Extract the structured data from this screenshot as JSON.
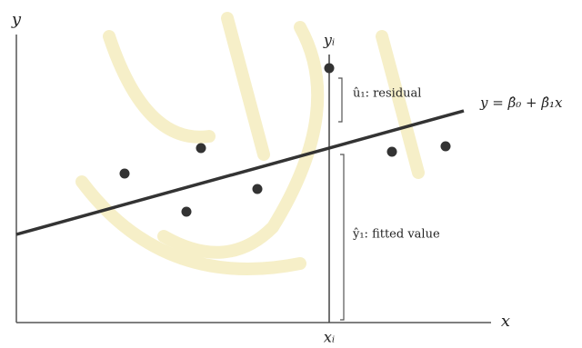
{
  "axes": {
    "y_label": "y",
    "x_label": "x"
  },
  "marker": {
    "y_label": "yᵢ",
    "x_label": "xᵢ"
  },
  "annotations": {
    "residual": "û₁: residual",
    "fitted": "ŷ₁: fitted value"
  },
  "equation": "y = β̂₀ + β̂₁x"
}
